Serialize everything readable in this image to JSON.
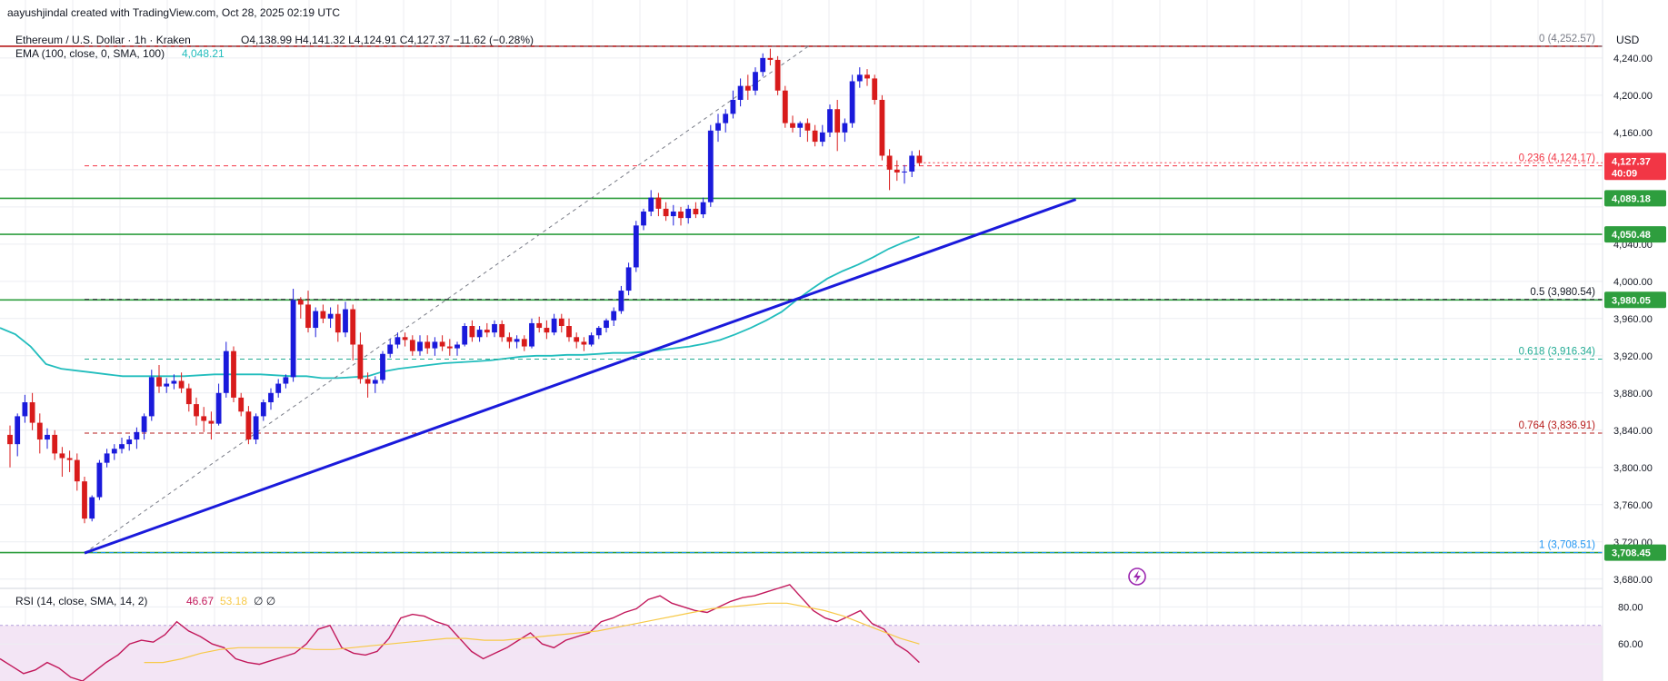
{
  "watermark": "aayushjindal created with TradingView.com, Oct 28, 2025 02:19 UTC",
  "header": {
    "title": "Ethereum / U.S. Dollar · 1h · Kraken",
    "ohlc": "O4,138.99  H4,141.32  L4,124.91  C4,127.37  −11.62 (−0.28%)",
    "ema_label": "EMA (100, close, 0, SMA, 100)",
    "ema_value": "4,048.21"
  },
  "currency": "USD",
  "price_axis": {
    "min": 3670,
    "max": 4275,
    "ticks": [
      "4,240.00",
      "4,200.00",
      "4,160.00",
      "4,040.00",
      "4,000.00",
      "3,960.00",
      "3,920.00",
      "3,880.00",
      "3,840.00",
      "3,800.00",
      "3,760.00",
      "3,720.00",
      "3,680.00"
    ],
    "tick_values": [
      4240,
      4200,
      4160,
      4040,
      4000,
      3960,
      3920,
      3880,
      3840,
      3800,
      3760,
      3720,
      3680
    ]
  },
  "current_price": {
    "label": "4,127.37",
    "countdown": "40:09",
    "value": 4127.37,
    "color": "#f23645"
  },
  "horizontal_levels": [
    {
      "value": 4252.57,
      "color": "#b71c1c",
      "badge": ""
    },
    {
      "value": 4089.18,
      "color": "#2e9e3e",
      "badge": "4,089.18"
    },
    {
      "value": 4050.48,
      "color": "#2e9e3e",
      "badge": "4,050.48"
    },
    {
      "value": 3980.05,
      "color": "#2e9e3e",
      "badge": "3,980.05"
    },
    {
      "value": 3708.45,
      "color": "#2e9e3e",
      "badge": "3,708.45"
    }
  ],
  "fib_levels": [
    {
      "ratio_label": "0 (4,252.57)",
      "value": 4252.57,
      "color": "#787b86"
    },
    {
      "ratio_label": "0.236 (4,124.17)",
      "value": 4124.17,
      "color": "#f23645"
    },
    {
      "ratio_label": "0.5 (3,980.54)",
      "value": 3980.54,
      "color": "#131722"
    },
    {
      "ratio_label": "0.618 (3,916.34)",
      "value": 3916.34,
      "color": "#22ab94"
    },
    {
      "ratio_label": "0.764 (3,836.91)",
      "value": 3836.91,
      "color": "#b71c1c"
    },
    {
      "ratio_label": "1 (3,708.51)",
      "value": 3708.51,
      "color": "#2196f3"
    }
  ],
  "trendline": {
    "start_index": 10,
    "start_value": 3708,
    "end_index": 143,
    "end_value": 4088,
    "color": "#1a1adb"
  },
  "fib_diagonal": {
    "start_index": 10,
    "start_value": 3708,
    "end_index": 107,
    "end_value": 4252,
    "color": "#787b86"
  },
  "colors": {
    "up": "#1a1adb",
    "down": "#d81b1b",
    "ema": "#22bdbd",
    "grid": "#eceef2",
    "rsi": "#c2185b",
    "rsi_ma": "#f7c948"
  },
  "chart_data": {
    "type": "candlestick",
    "title": "Ethereum / U.S. Dollar · 1h · Kraken",
    "xlabel": "",
    "ylabel": "USD",
    "ylim": [
      3670,
      4275
    ],
    "grid": true,
    "candles": [
      [
        3835,
        3845,
        3800,
        3825
      ],
      [
        3825,
        3858,
        3812,
        3855
      ],
      [
        3855,
        3878,
        3848,
        3870
      ],
      [
        3870,
        3880,
        3840,
        3848
      ],
      [
        3848,
        3858,
        3815,
        3830
      ],
      [
        3830,
        3842,
        3820,
        3835
      ],
      [
        3835,
        3840,
        3808,
        3815
      ],
      [
        3815,
        3822,
        3790,
        3810
      ],
      [
        3810,
        3818,
        3795,
        3808
      ],
      [
        3808,
        3815,
        3775,
        3785
      ],
      [
        3785,
        3790,
        3740,
        3745
      ],
      [
        3745,
        3770,
        3742,
        3768
      ],
      [
        3768,
        3808,
        3765,
        3805
      ],
      [
        3805,
        3820,
        3800,
        3815
      ],
      [
        3815,
        3825,
        3808,
        3820
      ],
      [
        3820,
        3832,
        3815,
        3825
      ],
      [
        3825,
        3834,
        3818,
        3830
      ],
      [
        3830,
        3843,
        3820,
        3838
      ],
      [
        3838,
        3858,
        3830,
        3855
      ],
      [
        3855,
        3905,
        3850,
        3897
      ],
      [
        3897,
        3910,
        3880,
        3887
      ],
      [
        3887,
        3896,
        3880,
        3890
      ],
      [
        3890,
        3900,
        3884,
        3893
      ],
      [
        3893,
        3902,
        3880,
        3885
      ],
      [
        3885,
        3890,
        3860,
        3868
      ],
      [
        3868,
        3875,
        3845,
        3855
      ],
      [
        3855,
        3865,
        3838,
        3850
      ],
      [
        3850,
        3860,
        3830,
        3847
      ],
      [
        3847,
        3890,
        3845,
        3880
      ],
      [
        3880,
        3935,
        3875,
        3925
      ],
      [
        3925,
        3930,
        3870,
        3875
      ],
      [
        3875,
        3880,
        3855,
        3860
      ],
      [
        3860,
        3866,
        3825,
        3830
      ],
      [
        3830,
        3858,
        3825,
        3855
      ],
      [
        3855,
        3873,
        3850,
        3870
      ],
      [
        3870,
        3885,
        3862,
        3880
      ],
      [
        3880,
        3895,
        3875,
        3890
      ],
      [
        3890,
        3900,
        3885,
        3897
      ],
      [
        3897,
        3992,
        3892,
        3980
      ],
      [
        3980,
        3983,
        3960,
        3975
      ],
      [
        3975,
        3990,
        3945,
        3950
      ],
      [
        3950,
        3972,
        3940,
        3968
      ],
      [
        3968,
        3975,
        3955,
        3960
      ],
      [
        3960,
        3972,
        3950,
        3965
      ],
      [
        3965,
        3975,
        3935,
        3945
      ],
      [
        3945,
        3978,
        3940,
        3970
      ],
      [
        3970,
        3975,
        3915,
        3932
      ],
      [
        3932,
        3945,
        3890,
        3895
      ],
      [
        3895,
        3902,
        3875,
        3890
      ],
      [
        3890,
        3898,
        3880,
        3894
      ],
      [
        3894,
        3925,
        3890,
        3922
      ],
      [
        3922,
        3938,
        3918,
        3932
      ],
      [
        3932,
        3945,
        3928,
        3940
      ],
      [
        3940,
        3945,
        3930,
        3937
      ],
      [
        3937,
        3942,
        3920,
        3925
      ],
      [
        3925,
        3942,
        3920,
        3935
      ],
      [
        3935,
        3942,
        3922,
        3928
      ],
      [
        3928,
        3940,
        3920,
        3935
      ],
      [
        3935,
        3942,
        3925,
        3930
      ],
      [
        3930,
        3938,
        3920,
        3928
      ],
      [
        3928,
        3935,
        3920,
        3932
      ],
      [
        3932,
        3955,
        3930,
        3952
      ],
      [
        3952,
        3958,
        3935,
        3940
      ],
      [
        3940,
        3952,
        3935,
        3948
      ],
      [
        3948,
        3955,
        3940,
        3945
      ],
      [
        3945,
        3958,
        3940,
        3954
      ],
      [
        3954,
        3958,
        3935,
        3940
      ],
      [
        3940,
        3945,
        3928,
        3935
      ],
      [
        3935,
        3942,
        3928,
        3938
      ],
      [
        3938,
        3942,
        3925,
        3930
      ],
      [
        3930,
        3960,
        3928,
        3955
      ],
      [
        3955,
        3962,
        3945,
        3950
      ],
      [
        3950,
        3958,
        3938,
        3945
      ],
      [
        3945,
        3965,
        3942,
        3960
      ],
      [
        3960,
        3965,
        3945,
        3952
      ],
      [
        3952,
        3960,
        3935,
        3940
      ],
      [
        3940,
        3945,
        3928,
        3935
      ],
      [
        3935,
        3940,
        3925,
        3932
      ],
      [
        3932,
        3945,
        3930,
        3942
      ],
      [
        3942,
        3952,
        3938,
        3950
      ],
      [
        3950,
        3960,
        3945,
        3958
      ],
      [
        3958,
        3972,
        3952,
        3968
      ],
      [
        3968,
        3995,
        3965,
        3990
      ],
      [
        3990,
        4020,
        3985,
        4015
      ],
      [
        4015,
        4065,
        4010,
        4060
      ],
      [
        4060,
        4078,
        4055,
        4075
      ],
      [
        4075,
        4098,
        4070,
        4090
      ],
      [
        4090,
        4095,
        4070,
        4078
      ],
      [
        4078,
        4085,
        4065,
        4070
      ],
      [
        4070,
        4082,
        4060,
        4075
      ],
      [
        4075,
        4080,
        4060,
        4068
      ],
      [
        4068,
        4082,
        4062,
        4078
      ],
      [
        4078,
        4085,
        4068,
        4072
      ],
      [
        4072,
        4090,
        4068,
        4085
      ],
      [
        4085,
        4168,
        4080,
        4162
      ],
      [
        4162,
        4180,
        4150,
        4170
      ],
      [
        4170,
        4185,
        4160,
        4180
      ],
      [
        4180,
        4205,
        4175,
        4195
      ],
      [
        4195,
        4218,
        4188,
        4210
      ],
      [
        4210,
        4222,
        4195,
        4205
      ],
      [
        4205,
        4230,
        4200,
        4225
      ],
      [
        4225,
        4245,
        4220,
        4240
      ],
      [
        4240,
        4250,
        4232,
        4238
      ],
      [
        4238,
        4242,
        4200,
        4205
      ],
      [
        4205,
        4210,
        4165,
        4170
      ],
      [
        4170,
        4178,
        4160,
        4165
      ],
      [
        4165,
        4172,
        4155,
        4170
      ],
      [
        4170,
        4175,
        4150,
        4162
      ],
      [
        4162,
        4168,
        4145,
        4150
      ],
      [
        4150,
        4168,
        4145,
        4160
      ],
      [
        4160,
        4190,
        4155,
        4185
      ],
      [
        4185,
        4195,
        4140,
        4160
      ],
      [
        4160,
        4175,
        4150,
        4170
      ],
      [
        4170,
        4222,
        4165,
        4215
      ],
      [
        4215,
        4230,
        4208,
        4222
      ],
      [
        4222,
        4228,
        4210,
        4218
      ],
      [
        4218,
        4222,
        4190,
        4195
      ],
      [
        4195,
        4200,
        4130,
        4135
      ],
      [
        4135,
        4142,
        4098,
        4120
      ],
      [
        4120,
        4130,
        4108,
        4117
      ],
      [
        4117,
        4125,
        4105,
        4118
      ],
      [
        4118,
        4140,
        4112,
        4135
      ],
      [
        4135,
        4141,
        4124,
        4127
      ]
    ],
    "ema_100": [
      3950,
      3943,
      3930,
      3911,
      3906,
      3904,
      3902,
      3900,
      3898,
      3898,
      3898,
      3898,
      3898,
      3899,
      3900,
      3900,
      3900,
      3900,
      3899,
      3898,
      3898,
      3896,
      3896,
      3897,
      3898,
      3903,
      3906,
      3908,
      3910,
      3912,
      3913,
      3914,
      3915,
      3917,
      3919,
      3920,
      3920,
      3921,
      3921,
      3922,
      3923,
      3923,
      3924,
      3926,
      3928,
      3930,
      3933,
      3937,
      3943,
      3950,
      3958,
      3967,
      3980,
      3992,
      4003,
      4011,
      4018,
      4026,
      4035,
      4042,
      4048
    ],
    "rsi": {
      "label": "RSI (14, close, SMA, 14, 2)",
      "value_rsi": "46.67",
      "value_ma": "53.18",
      "extra": "∅ ∅",
      "ticks": [
        "80.00",
        "60.00"
      ],
      "tick_values": [
        80,
        60
      ],
      "band": [
        70,
        30
      ],
      "values": [
        52,
        48,
        44,
        46,
        50,
        47,
        42,
        40,
        45,
        50,
        54,
        60,
        62,
        61,
        65,
        72,
        67,
        64,
        60,
        58,
        52,
        50,
        49,
        51,
        53,
        55,
        60,
        68,
        70,
        58,
        55,
        54,
        56,
        63,
        74,
        76,
        75,
        72,
        70,
        63,
        56,
        52,
        55,
        58,
        62,
        66,
        60,
        58,
        62,
        64,
        66,
        72,
        74,
        77,
        79,
        84,
        86,
        82,
        80,
        78,
        77,
        80,
        83,
        85,
        86,
        88,
        90,
        92,
        85,
        78,
        74,
        72,
        75,
        78,
        71,
        68,
        60,
        56,
        50
      ],
      "ma_values": [
        50,
        50,
        52,
        55,
        57,
        58,
        58,
        58,
        58,
        57,
        57,
        58,
        59,
        60,
        61,
        62,
        63,
        63,
        62,
        62,
        63,
        64,
        65,
        66,
        67,
        69,
        71,
        73,
        75,
        77,
        79,
        80,
        81,
        82,
        82,
        80,
        78,
        75,
        71,
        67,
        63,
        60
      ]
    }
  }
}
